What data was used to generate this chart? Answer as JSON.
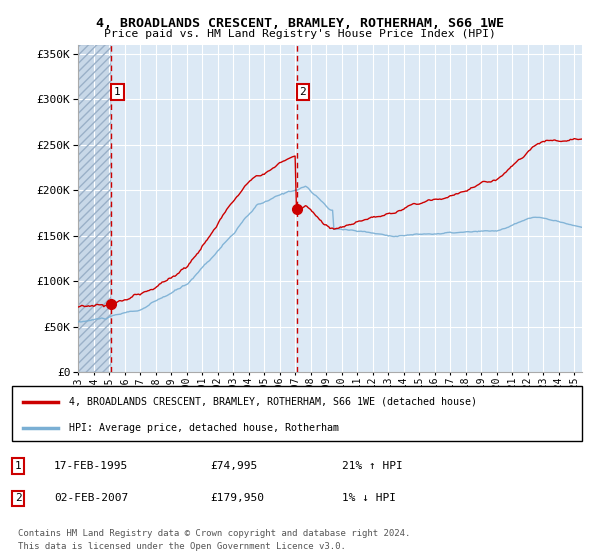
{
  "title1": "4, BROADLANDS CRESCENT, BRAMLEY, ROTHERHAM, S66 1WE",
  "title2": "Price paid vs. HM Land Registry's House Price Index (HPI)",
  "legend_line1": "4, BROADLANDS CRESCENT, BRAMLEY, ROTHERHAM, S66 1WE (detached house)",
  "legend_line2": "HPI: Average price, detached house, Rotherham",
  "annotation1_date": "17-FEB-1995",
  "annotation1_price": "£74,995",
  "annotation1_hpi": "21% ↑ HPI",
  "annotation2_date": "02-FEB-2007",
  "annotation2_price": "£179,950",
  "annotation2_hpi": "1% ↓ HPI",
  "footer": "Contains HM Land Registry data © Crown copyright and database right 2024.\nThis data is licensed under the Open Government Licence v3.0.",
  "sale1_x": 1995.12,
  "sale1_y": 74995,
  "sale2_x": 2007.09,
  "sale2_y": 179950,
  "ylim": [
    0,
    360000
  ],
  "xlim_start": 1993.0,
  "xlim_end": 2025.5,
  "background_color": "#dce9f5",
  "hatch_color": "#b8cfe0",
  "grid_color": "#ffffff",
  "red_line_color": "#cc0000",
  "blue_line_color": "#7aafd4",
  "vline_color": "#cc0000",
  "dot_color": "#cc0000"
}
